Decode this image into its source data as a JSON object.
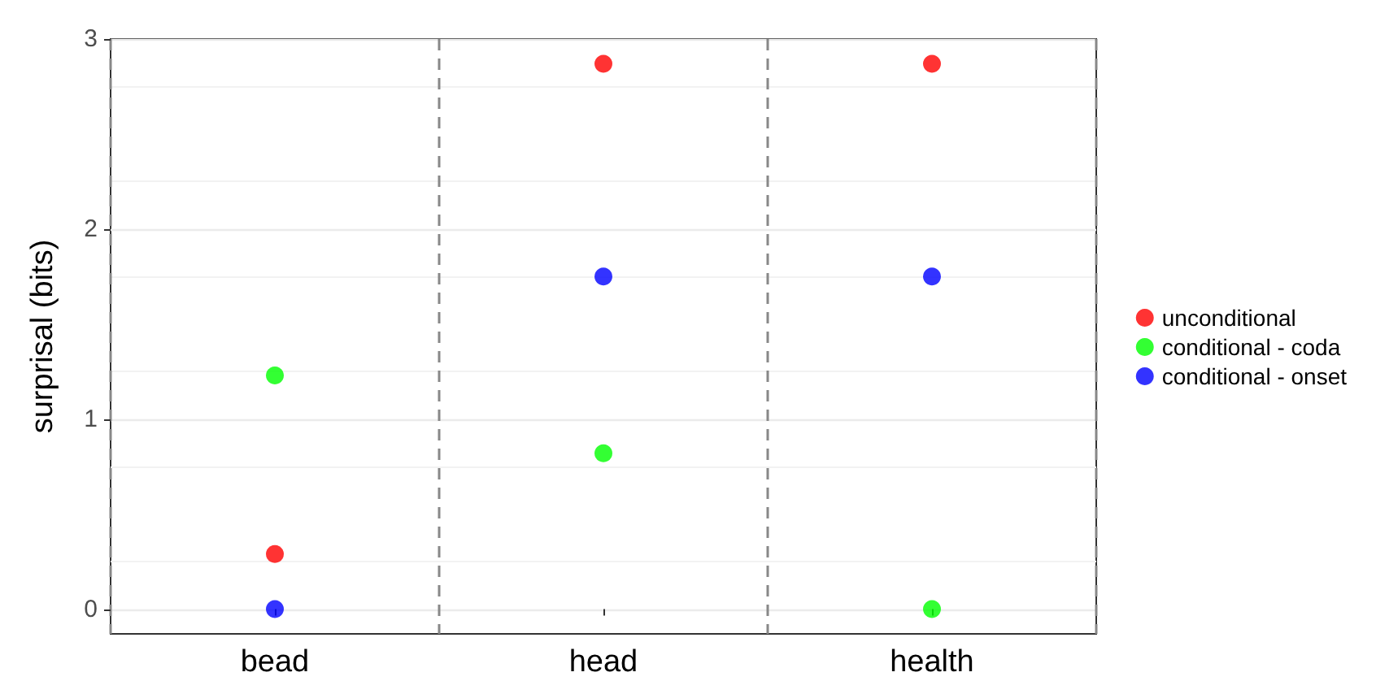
{
  "chart_data": {
    "type": "scatter",
    "ylabel": "surprisal (bits)",
    "categories": [
      "bead",
      "head",
      "health"
    ],
    "series": [
      {
        "name": "unconditional",
        "color": "#ff0000",
        "values": [
          0.29,
          2.87,
          2.87
        ]
      },
      {
        "name": "conditional - coda",
        "color": "#00ff00",
        "values": [
          1.23,
          0.82,
          0
        ]
      },
      {
        "name": "conditional - onset",
        "color": "#0000ff",
        "values": [
          0,
          1.75,
          1.75
        ]
      }
    ],
    "ylim": [
      -0.13,
      3
    ],
    "yticks": [
      0,
      1,
      2,
      3
    ],
    "grid": true,
    "legend": "right",
    "marker": "circle"
  }
}
